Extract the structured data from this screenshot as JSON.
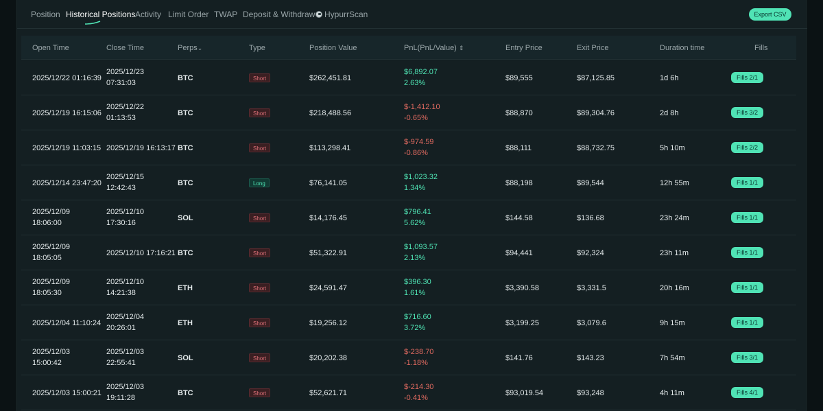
{
  "tabs": [
    {
      "label": "Position"
    },
    {
      "label": "Historical Positions"
    },
    {
      "label": "Activity"
    },
    {
      "label": "Limit Order"
    },
    {
      "label": "TWAP"
    },
    {
      "label": "Deposit & Withdraw"
    },
    {
      "label": "HypurrScan"
    }
  ],
  "active_tab": "Historical Positions",
  "export_label": "Export CSV",
  "columns": {
    "open_time": "Open Time",
    "close_time": "Close Time",
    "perps": "Perps",
    "type": "Type",
    "position_value": "Position Value",
    "pnl": "PnL(PnL/Value)",
    "entry_price": "Entry Price",
    "exit_price": "Exit Price",
    "duration": "Duration time",
    "fills": "Fills"
  },
  "colors": {
    "accent": "#50e3b5",
    "positive": "#4fe2b3",
    "negative": "#e06a60"
  },
  "rows": [
    {
      "open1": "2025/12/22 01:16:39",
      "open2": "",
      "close1": "2025/12/23",
      "close2": "07:31:03",
      "perp": "BTC",
      "type": "Short",
      "value": "$262,451.81",
      "pnl": "$6,892.07",
      "pnl_pct": "2.63%",
      "pnl_sign": "pos",
      "entry": "$89,555",
      "exit": "$87,125.85",
      "duration": "1d 6h",
      "fills": "Fills 2/1"
    },
    {
      "open1": "2025/12/19 16:15:06",
      "open2": "",
      "close1": "2025/12/22",
      "close2": "01:13:53",
      "perp": "BTC",
      "type": "Short",
      "value": "$218,488.56",
      "pnl": "$-1,412.10",
      "pnl_pct": "-0.65%",
      "pnl_sign": "neg",
      "entry": "$88,870",
      "exit": "$89,304.76",
      "duration": "2d 8h",
      "fills": "Fills 3/2"
    },
    {
      "open1": "2025/12/19 11:03:15",
      "open2": "",
      "close1": "2025/12/19 16:13:17",
      "close2": "",
      "perp": "BTC",
      "type": "Short",
      "value": "$113,298.41",
      "pnl": "$-974.59",
      "pnl_pct": "-0.86%",
      "pnl_sign": "neg",
      "entry": "$88,111",
      "exit": "$88,732.75",
      "duration": "5h 10m",
      "fills": "Fills 2/2"
    },
    {
      "open1": "2025/12/14 23:47:20",
      "open2": "",
      "close1": "2025/12/15",
      "close2": "12:42:43",
      "perp": "BTC",
      "type": "Long",
      "value": "$76,141.05",
      "pnl": "$1,023.32",
      "pnl_pct": "1.34%",
      "pnl_sign": "pos",
      "entry": "$88,198",
      "exit": "$89,544",
      "duration": "12h 55m",
      "fills": "Fills 1/1"
    },
    {
      "open1": "2025/12/09",
      "open2": "18:06:00",
      "close1": "2025/12/10",
      "close2": "17:30:16",
      "perp": "SOL",
      "type": "Short",
      "value": "$14,176.45",
      "pnl": "$796.41",
      "pnl_pct": "5.62%",
      "pnl_sign": "pos",
      "entry": "$144.58",
      "exit": "$136.68",
      "duration": "23h 24m",
      "fills": "Fills 1/1"
    },
    {
      "open1": "2025/12/09",
      "open2": "18:05:05",
      "close1": "2025/12/10 17:16:21",
      "close2": "",
      "perp": "BTC",
      "type": "Short",
      "value": "$51,322.91",
      "pnl": "$1,093.57",
      "pnl_pct": "2.13%",
      "pnl_sign": "pos",
      "entry": "$94,441",
      "exit": "$92,324",
      "duration": "23h 11m",
      "fills": "Fills 1/1"
    },
    {
      "open1": "2025/12/09",
      "open2": "18:05:30",
      "close1": "2025/12/10",
      "close2": "14:21:38",
      "perp": "ETH",
      "type": "Short",
      "value": "$24,591.47",
      "pnl": "$396.30",
      "pnl_pct": "1.61%",
      "pnl_sign": "pos",
      "entry": "$3,390.58",
      "exit": "$3,331.5",
      "duration": "20h 16m",
      "fills": "Fills 1/1"
    },
    {
      "open1": "2025/12/04 11:10:24",
      "open2": "",
      "close1": "2025/12/04",
      "close2": "20:26:01",
      "perp": "ETH",
      "type": "Short",
      "value": "$19,256.12",
      "pnl": "$716.60",
      "pnl_pct": "3.72%",
      "pnl_sign": "pos",
      "entry": "$3,199.25",
      "exit": "$3,079.6",
      "duration": "9h 15m",
      "fills": "Fills 1/1"
    },
    {
      "open1": "2025/12/03",
      "open2": "15:00:42",
      "close1": "2025/12/03",
      "close2": "22:55:41",
      "perp": "SOL",
      "type": "Short",
      "value": "$20,202.38",
      "pnl": "$-238.70",
      "pnl_pct": "-1.18%",
      "pnl_sign": "neg",
      "entry": "$141.76",
      "exit": "$143.23",
      "duration": "7h 54m",
      "fills": "Fills 3/1"
    },
    {
      "open1": "2025/12/03 15:00:21",
      "open2": "",
      "close1": "2025/12/03",
      "close2": "19:11:28",
      "perp": "BTC",
      "type": "Short",
      "value": "$52,621.71",
      "pnl": "$-214.30",
      "pnl_pct": "-0.41%",
      "pnl_sign": "neg",
      "entry": "$93,019.54",
      "exit": "$93,248",
      "duration": "4h 11m",
      "fills": "Fills 4/1"
    }
  ]
}
